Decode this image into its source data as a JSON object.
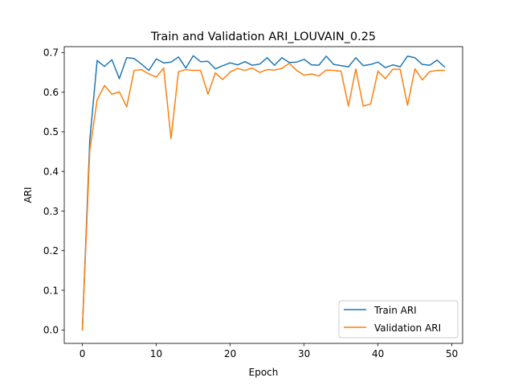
{
  "chart_data": {
    "type": "line",
    "title": "Train and Validation ARI_LOUVAIN_0.25",
    "xlabel": "Epoch",
    "ylabel": "ARI",
    "xlim": [
      -2.45,
      51.45
    ],
    "ylim": [
      -0.034,
      0.715
    ],
    "xticks": [
      0,
      10,
      20,
      30,
      40,
      50
    ],
    "yticks": [
      0.0,
      0.1,
      0.2,
      0.3,
      0.4,
      0.5,
      0.6,
      0.7
    ],
    "xtick_labels": [
      "0",
      "10",
      "20",
      "30",
      "40",
      "50"
    ],
    "ytick_labels": [
      "0.0",
      "0.1",
      "0.2",
      "0.3",
      "0.4",
      "0.5",
      "0.6",
      "0.7"
    ],
    "grid": false,
    "legend_position": "lower-right",
    "x": [
      0,
      1,
      2,
      3,
      4,
      5,
      6,
      7,
      8,
      9,
      10,
      11,
      12,
      13,
      14,
      15,
      16,
      17,
      18,
      19,
      20,
      21,
      22,
      23,
      24,
      25,
      26,
      27,
      28,
      29,
      30,
      31,
      32,
      33,
      34,
      35,
      36,
      37,
      38,
      39,
      40,
      41,
      42,
      43,
      44,
      45,
      46,
      47,
      48,
      49
    ],
    "series": [
      {
        "name": "Train ARI",
        "color": "#1f77b4",
        "values": [
          0.0,
          0.478,
          0.68,
          0.665,
          0.682,
          0.634,
          0.687,
          0.685,
          0.671,
          0.655,
          0.684,
          0.674,
          0.676,
          0.689,
          0.661,
          0.692,
          0.677,
          0.678,
          0.659,
          0.667,
          0.674,
          0.669,
          0.677,
          0.668,
          0.671,
          0.687,
          0.668,
          0.687,
          0.675,
          0.676,
          0.683,
          0.669,
          0.668,
          0.691,
          0.67,
          0.667,
          0.664,
          0.687,
          0.667,
          0.67,
          0.676,
          0.662,
          0.669,
          0.664,
          0.691,
          0.687,
          0.67,
          0.668,
          0.681,
          0.664
        ]
      },
      {
        "name": "Validation ARI",
        "color": "#ff7f0e",
        "values": [
          0.0,
          0.452,
          0.581,
          0.617,
          0.595,
          0.601,
          0.563,
          0.655,
          0.657,
          0.646,
          0.638,
          0.661,
          0.483,
          0.652,
          0.657,
          0.655,
          0.655,
          0.595,
          0.649,
          0.632,
          0.651,
          0.66,
          0.655,
          0.661,
          0.65,
          0.657,
          0.656,
          0.66,
          0.673,
          0.655,
          0.643,
          0.646,
          0.641,
          0.656,
          0.655,
          0.653,
          0.565,
          0.659,
          0.565,
          0.57,
          0.653,
          0.634,
          0.658,
          0.658,
          0.567,
          0.659,
          0.631,
          0.652,
          0.655,
          0.655
        ]
      }
    ]
  }
}
